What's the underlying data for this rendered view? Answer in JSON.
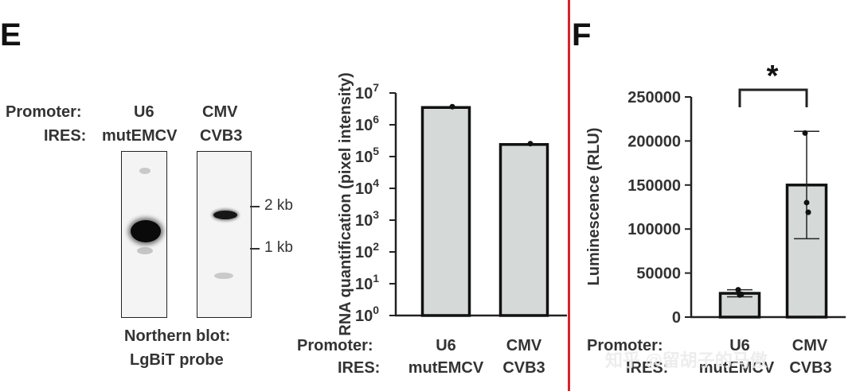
{
  "panelE": {
    "letter": "E",
    "blot": {
      "promoter_label": "Promoter:",
      "ires_label": "IRES:",
      "lanes": [
        {
          "promoter": "U6",
          "ires": "mutEMCV"
        },
        {
          "promoter": "CMV",
          "ires": "CVB3"
        }
      ],
      "markers": [
        "2 kb",
        "1 kb"
      ],
      "caption_line1": "Northern blot:",
      "caption_line2": "LgBiT probe"
    }
  },
  "panelF": {
    "letter": "F",
    "significance": "*"
  },
  "watermark": "知乎 @留胡子的马傲",
  "chart_data": [
    {
      "type": "bar",
      "ylabel": "RNA quantification (pixel intensity)",
      "yscale": "log",
      "ylim": [
        1,
        10000000
      ],
      "yticks": [
        {
          "value": 1,
          "base": "10",
          "exp": "0"
        },
        {
          "value": 10,
          "base": "10",
          "exp": "1"
        },
        {
          "value": 100,
          "base": "10",
          "exp": "2"
        },
        {
          "value": 1000,
          "base": "10",
          "exp": "3"
        },
        {
          "value": 10000,
          "base": "10",
          "exp": "4"
        },
        {
          "value": 100000,
          "base": "10",
          "exp": "5"
        },
        {
          "value": 1000000,
          "base": "10",
          "exp": "6"
        },
        {
          "value": 10000000,
          "base": "10",
          "exp": "7"
        }
      ],
      "promoter_label": "Promoter:",
      "ires_label": "IRES:",
      "categories": [
        {
          "promoter": "U6",
          "ires": "mutEMCV"
        },
        {
          "promoter": "CMV",
          "ires": "CVB3"
        }
      ],
      "values": [
        3500000,
        240000
      ],
      "points": [
        [
          3500000
        ],
        [
          240000
        ]
      ],
      "bar_color": "#d5d9d7"
    },
    {
      "type": "bar",
      "ylabel": "Luminescence (RLU)",
      "ylim": [
        0,
        250000
      ],
      "yticks": [
        0,
        50000,
        100000,
        150000,
        200000,
        250000
      ],
      "promoter_label": "Promoter:",
      "ires_label": "IRES:",
      "categories": [
        {
          "promoter": "U6",
          "ires": "mutEMCV"
        },
        {
          "promoter": "CMV",
          "ires": "CVB3"
        }
      ],
      "values": [
        27000,
        150000
      ],
      "error": [
        4000,
        61000
      ],
      "points": [
        [
          31000,
          25000,
          26000
        ],
        [
          209000,
          130000,
          119000
        ]
      ],
      "significance": "*",
      "bar_color": "#d5d9d7"
    }
  ]
}
